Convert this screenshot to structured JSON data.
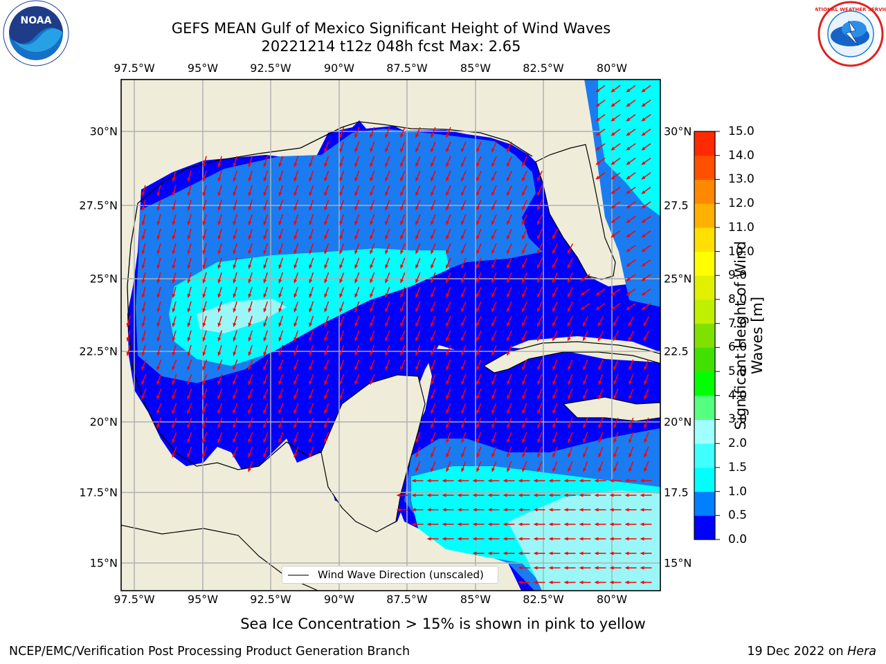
{
  "title_line1": "GEFS MEAN Gulf of Mexico Significant Height of Wind Waves",
  "title_line2": "20221214 t12z 048h fcst   Max: 2.65",
  "lon_ticks": [
    "97.5°W",
    "95°W",
    "92.5°W",
    "90°W",
    "87.5°W",
    "85°W",
    "82.5°W",
    "80°W"
  ],
  "lat_ticks_left": [
    "30°N",
    "27.5°N",
    "25°N",
    "22.5°N",
    "20°N",
    "17.5°N",
    "15°N"
  ],
  "lat_ticks_right": [
    "30°N",
    "27.5",
    "25°N",
    "22.5",
    "20°N",
    "17.5",
    "15°N"
  ],
  "colorbar": {
    "label": "Significant Height of Wind Waves [m]",
    "ticks": [
      "0.0",
      "0.5",
      "1.0",
      "1.5",
      "2.0",
      "3.0",
      "4.0",
      "5.0",
      "6.0",
      "7.0",
      "8.0",
      "9.0",
      "10.0",
      "11.0",
      "12.0",
      "13.0",
      "14.0",
      "15.0"
    ],
    "colors": [
      "#0000ff",
      "#0080ff",
      "#00ffff",
      "#40ffff",
      "#a0ffff",
      "#55ff80",
      "#00ff00",
      "#40e000",
      "#80e000",
      "#c0f000",
      "#e0f000",
      "#ffff00",
      "#ffe000",
      "#ffb000",
      "#ff8800",
      "#ff5000",
      "#ff2a00",
      "#ff0000"
    ]
  },
  "legend_label": "Wind Wave Direction (unscaled)",
  "subtitle": "Sea Ice Concentration > 15% is shown in pink to yellow",
  "footer_left": "NCEP/EMC/Verification Post Processing Product Generation Branch",
  "footer_right_date": "19 Dec 2022 on",
  "footer_right_machine": "Hera",
  "logos": {
    "left": "noaa-logo",
    "left_text": "NOAA",
    "right": "national-weather-service-logo",
    "right_text": "NATIONAL WEATHER SERVICE"
  },
  "colors": {
    "land": "#efedda",
    "wave_low": "#0000ff",
    "wave_mid": "#1a7cf0",
    "wave_high": "#00ffff",
    "wave_top": "#9bf7f7",
    "arrow": "#ff0000",
    "grid": "#b0b0b0"
  }
}
